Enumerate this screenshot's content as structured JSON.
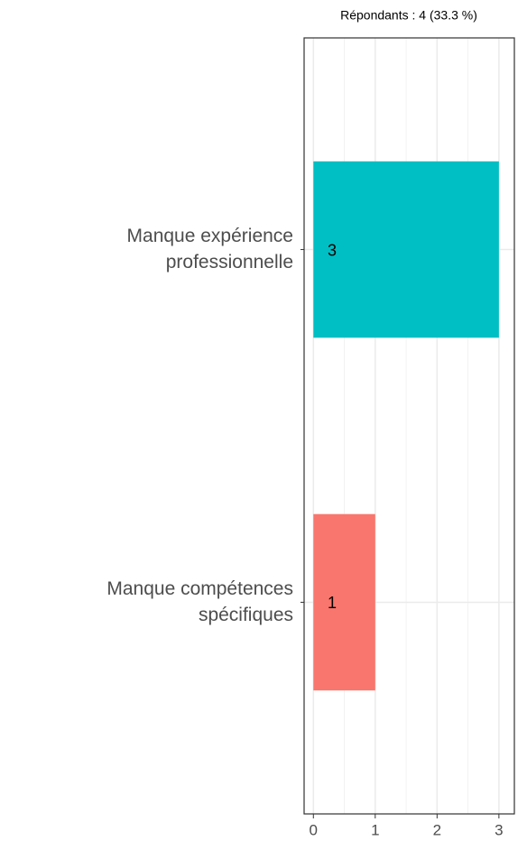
{
  "chart_data": {
    "type": "barh",
    "subtitle": "Répondants : 4 (33.3 %)",
    "categories": [
      "Manque expérience\nprofessionnelle",
      "Manque compétences\nspécifiques"
    ],
    "series": [
      {
        "values": [
          3,
          1
        ],
        "colors": [
          "#00bfc4",
          "#f8766d"
        ]
      }
    ],
    "xlim": [
      -0.15,
      3.25
    ],
    "xticks": [
      0,
      1,
      2,
      3
    ],
    "xminorticks": [
      0.5,
      1.5,
      2.5
    ],
    "grid": true
  }
}
